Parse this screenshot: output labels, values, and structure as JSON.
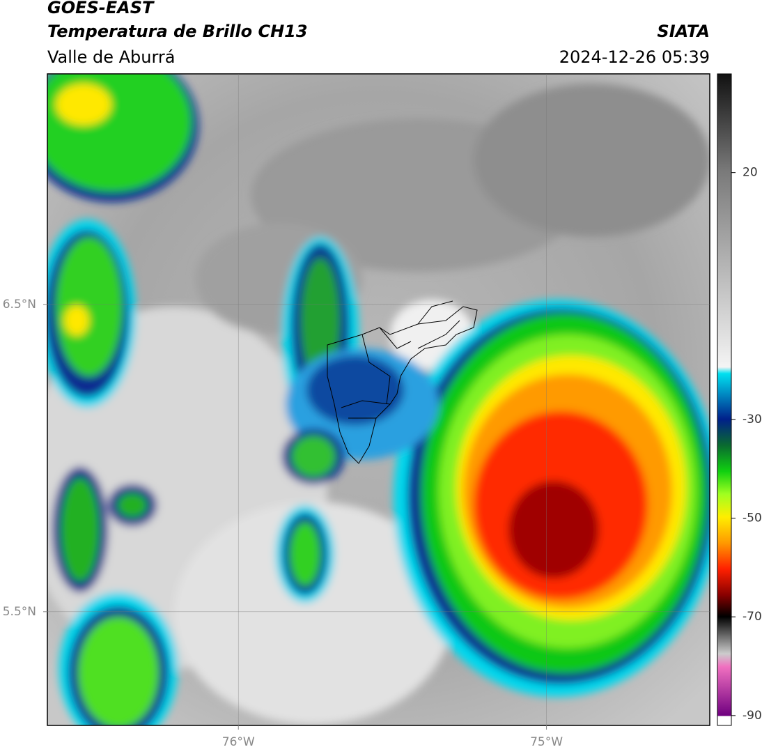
{
  "header": {
    "title": "GOES-EAST",
    "subtitle": "Temperatura de Brillo CH13",
    "region": "Valle de Aburrá",
    "source": "SIATA",
    "datetime": "2024-12-26 05:39"
  },
  "map": {
    "xlim": [
      -76.62,
      -74.47
    ],
    "ylim": [
      5.13,
      7.25
    ],
    "xticks": [
      {
        "value": -76,
        "label": "76°W"
      },
      {
        "value": -75,
        "label": "75°W"
      }
    ],
    "yticks": [
      {
        "value": 6.5,
        "label": "6.5°N"
      },
      {
        "value": 5.5,
        "label": "5.5°N"
      }
    ],
    "grid": true
  },
  "colorbar": {
    "lim": [
      -92,
      40
    ],
    "ticks": [
      20,
      -30,
      -50,
      -70,
      -90
    ]
  }
}
